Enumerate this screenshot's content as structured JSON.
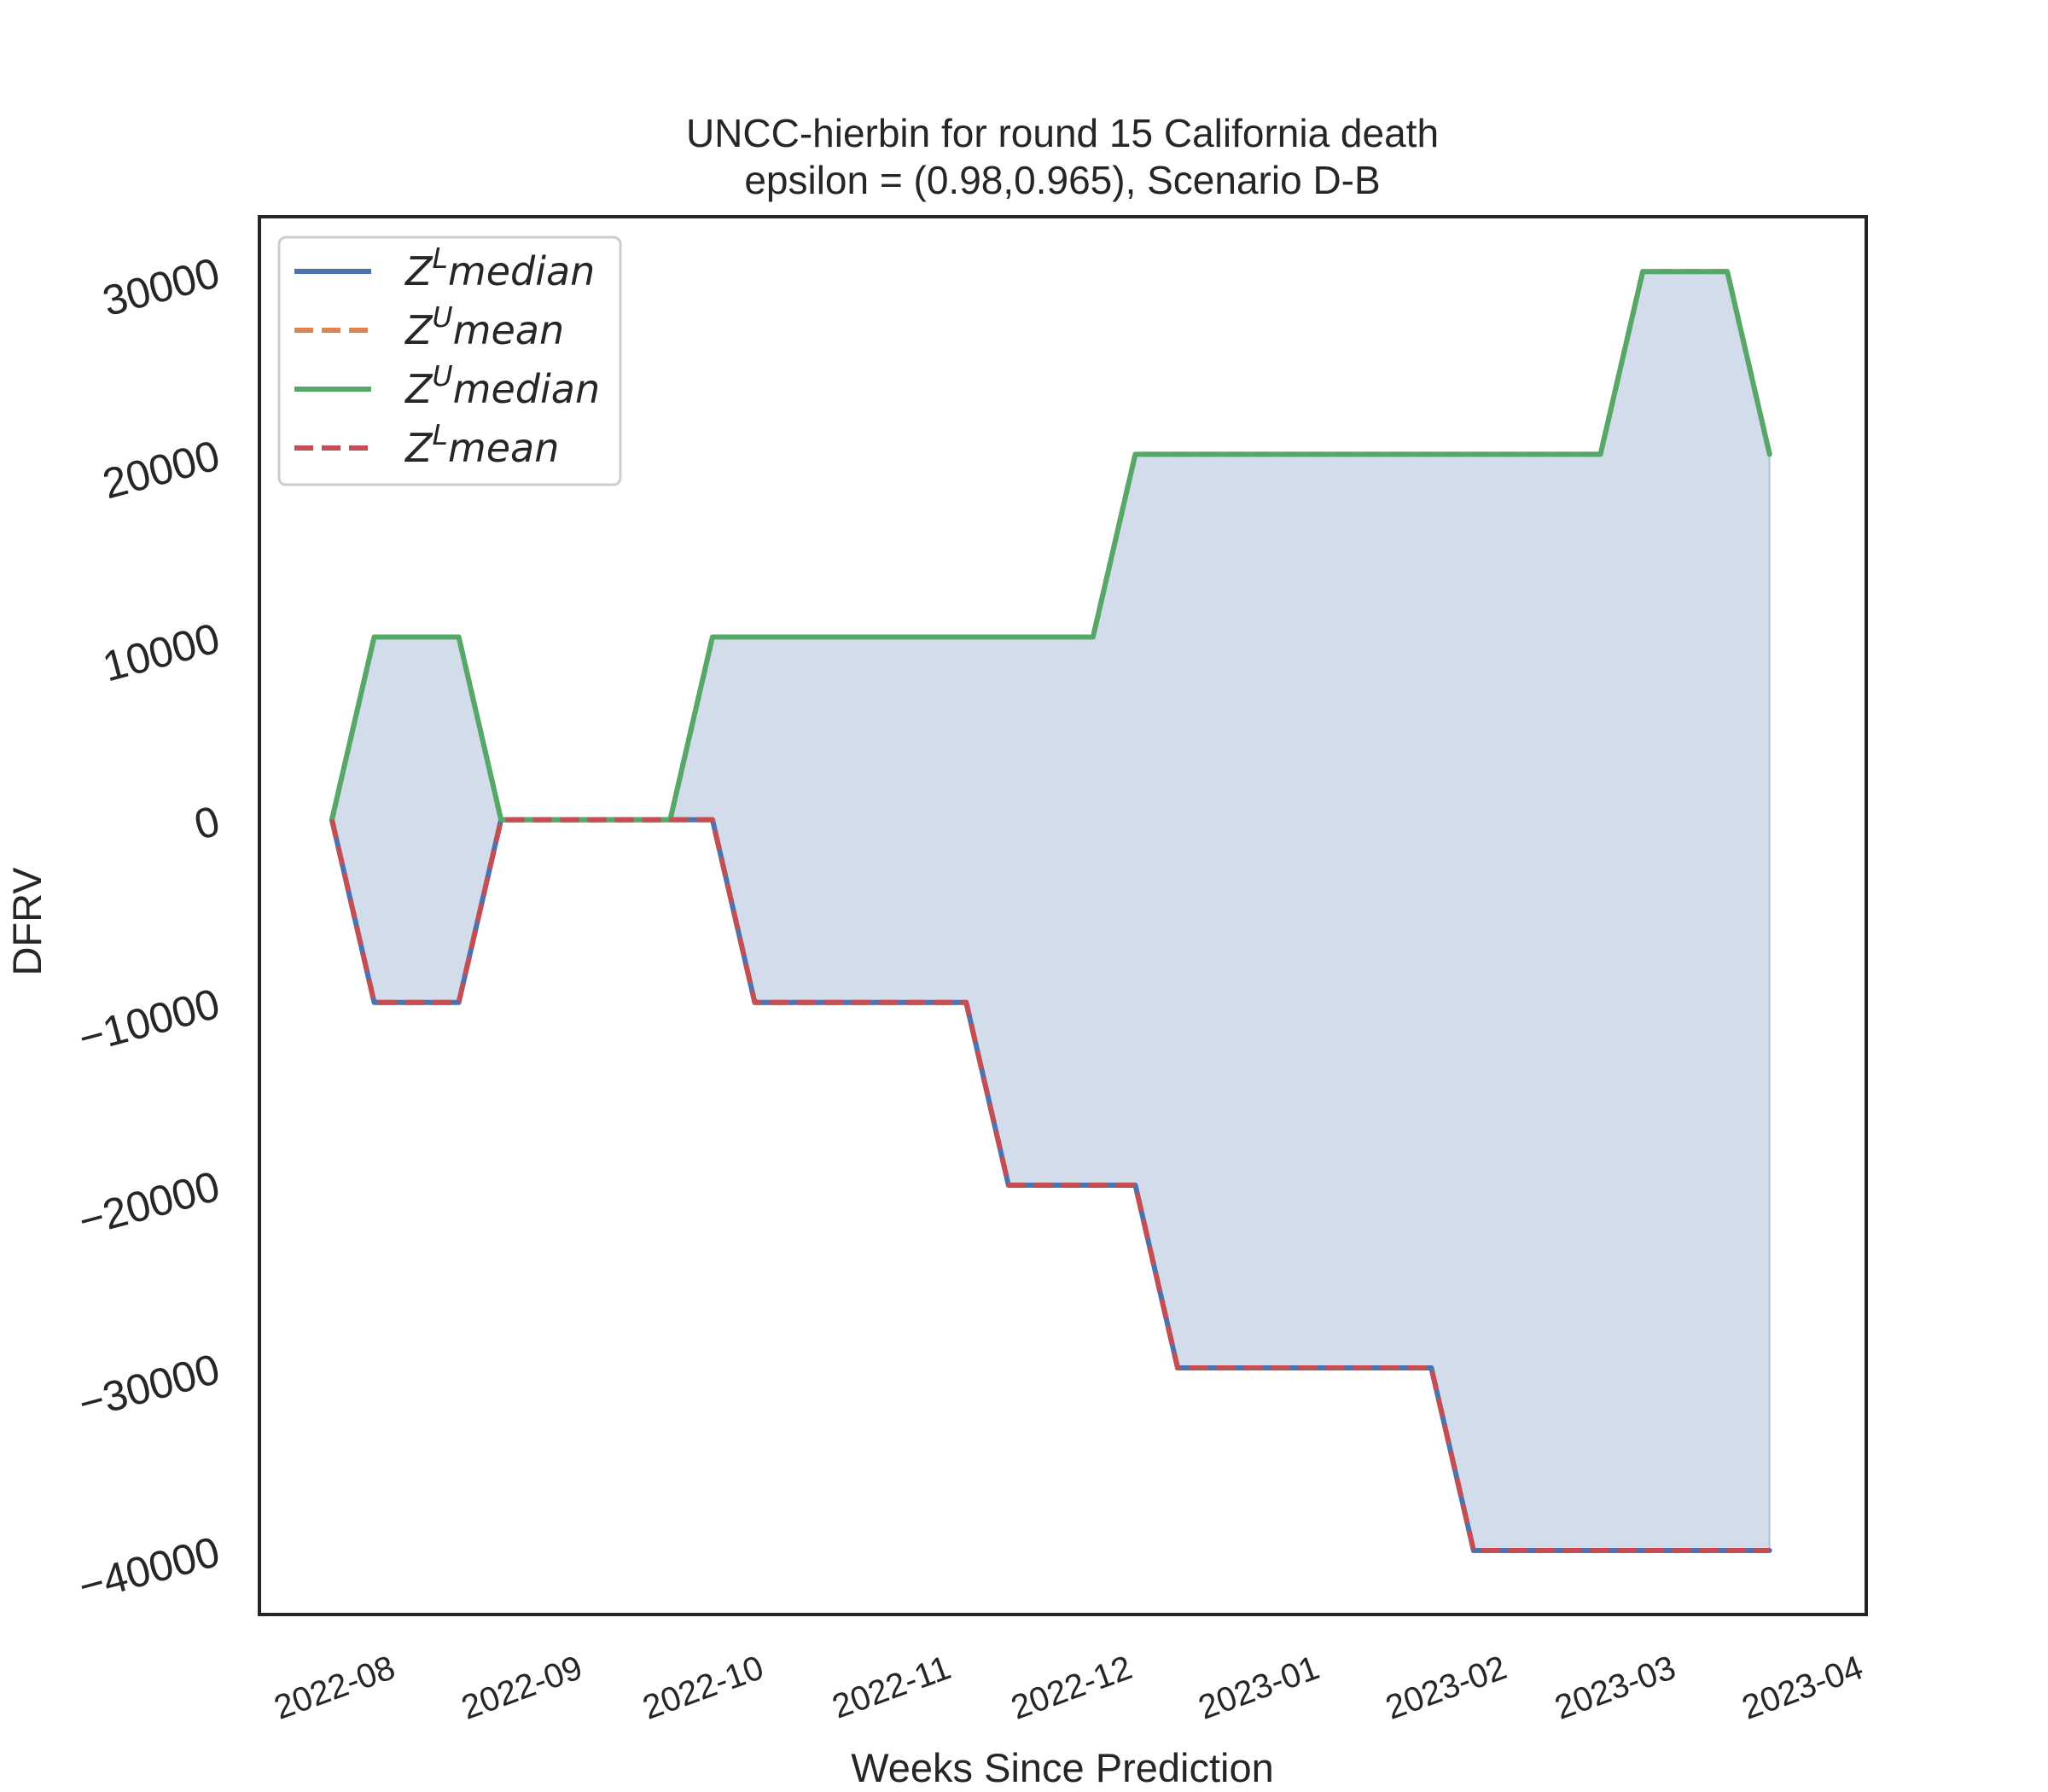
{
  "chart_data": {
    "type": "line",
    "title_line1": "UNCC-hierbin for round 15 California  death",
    "title_line2": "epsilon = (0.98,0.965), Scenario D-B",
    "xlabel": "Weeks Since Prediction",
    "ylabel": "DFRV",
    "ylim": [
      -43500,
      33000
    ],
    "yticks": [
      30000,
      20000,
      10000,
      0,
      -10000,
      -20000,
      -30000,
      -40000
    ],
    "ytick_labels": [
      "30000",
      "20000",
      "10000",
      "0",
      "−10000",
      "−20000",
      "−30000",
      "−40000"
    ],
    "xlim": [
      "2022-07-12",
      "2023-04-04"
    ],
    "xticks": [
      "2022-08-01",
      "2022-09-01",
      "2022-10-01",
      "2022-11-01",
      "2022-12-01",
      "2023-01-01",
      "2023-02-01",
      "2023-03-01",
      "2023-04-01"
    ],
    "xtick_labels": [
      "2022-08",
      "2022-09",
      "2022-10",
      "2022-11",
      "2022-12",
      "2023-01",
      "2023-02",
      "2023-03",
      "2023-04"
    ],
    "x": [
      "2022-07-24",
      "2022-07-31",
      "2022-08-07",
      "2022-08-14",
      "2022-08-21",
      "2022-08-28",
      "2022-09-04",
      "2022-09-11",
      "2022-09-18",
      "2022-09-25",
      "2022-10-02",
      "2022-10-09",
      "2022-10-16",
      "2022-10-23",
      "2022-10-30",
      "2022-11-06",
      "2022-11-13",
      "2022-11-20",
      "2022-11-27",
      "2022-12-04",
      "2022-12-11",
      "2022-12-18",
      "2022-12-25",
      "2023-01-01",
      "2023-01-08",
      "2023-01-15",
      "2023-01-22",
      "2023-01-29",
      "2023-02-05",
      "2023-02-12",
      "2023-02-19",
      "2023-02-26",
      "2023-03-05",
      "2023-03-12",
      "2023-03-19"
    ],
    "series": [
      {
        "name": "Z^{L}median",
        "legend_base": "Z",
        "legend_sup": "L",
        "legend_suffix": "median",
        "color": "#4c72b0",
        "dash": "solid",
        "values": [
          0,
          -10000,
          -10000,
          -10000,
          0,
          0,
          0,
          0,
          0,
          0,
          -10000,
          -10000,
          -10000,
          -10000,
          -10000,
          -10000,
          -20000,
          -20000,
          -20000,
          -20000,
          -30000,
          -30000,
          -30000,
          -30000,
          -30000,
          -30000,
          -30000,
          -40000,
          -40000,
          -40000,
          -40000,
          -40000,
          -40000,
          -40000,
          -40000
        ]
      },
      {
        "name": "Z^{U}mean",
        "legend_base": "Z",
        "legend_sup": "U",
        "legend_suffix": "mean",
        "color": "#dd8452",
        "dash": "dashed",
        "values": [
          0,
          10000,
          10000,
          10000,
          0,
          0,
          0,
          0,
          0,
          10000,
          10000,
          10000,
          10000,
          10000,
          10000,
          10000,
          10000,
          10000,
          10000,
          20000,
          20000,
          20000,
          20000,
          20000,
          20000,
          20000,
          20000,
          20000,
          20000,
          20000,
          20000,
          30000,
          30000,
          30000,
          20000
        ]
      },
      {
        "name": "Z^{U}median",
        "legend_base": "Z",
        "legend_sup": "U",
        "legend_suffix": "median",
        "color": "#55a868",
        "dash": "solid",
        "values": [
          0,
          10000,
          10000,
          10000,
          0,
          0,
          0,
          0,
          0,
          10000,
          10000,
          10000,
          10000,
          10000,
          10000,
          10000,
          10000,
          10000,
          10000,
          20000,
          20000,
          20000,
          20000,
          20000,
          20000,
          20000,
          20000,
          20000,
          20000,
          20000,
          20000,
          30000,
          30000,
          30000,
          20000
        ]
      },
      {
        "name": "Z^{L}mean",
        "legend_base": "Z",
        "legend_sup": "L",
        "legend_suffix": "mean",
        "color": "#c44e52",
        "dash": "dashed",
        "values": [
          0,
          -10000,
          -10000,
          -10000,
          0,
          0,
          0,
          0,
          0,
          0,
          -10000,
          -10000,
          -10000,
          -10000,
          -10000,
          -10000,
          -20000,
          -20000,
          -20000,
          -20000,
          -30000,
          -30000,
          -30000,
          -30000,
          -30000,
          -30000,
          -30000,
          -40000,
          -40000,
          -40000,
          -40000,
          -40000,
          -40000,
          -40000,
          -40000
        ]
      }
    ],
    "fill_between": {
      "lower_series": "Z^{L}median",
      "upper_series": "Z^{U}median",
      "color": "#4c72b0",
      "opacity": 0.25
    },
    "legend_position": "upper left",
    "grid": false
  }
}
